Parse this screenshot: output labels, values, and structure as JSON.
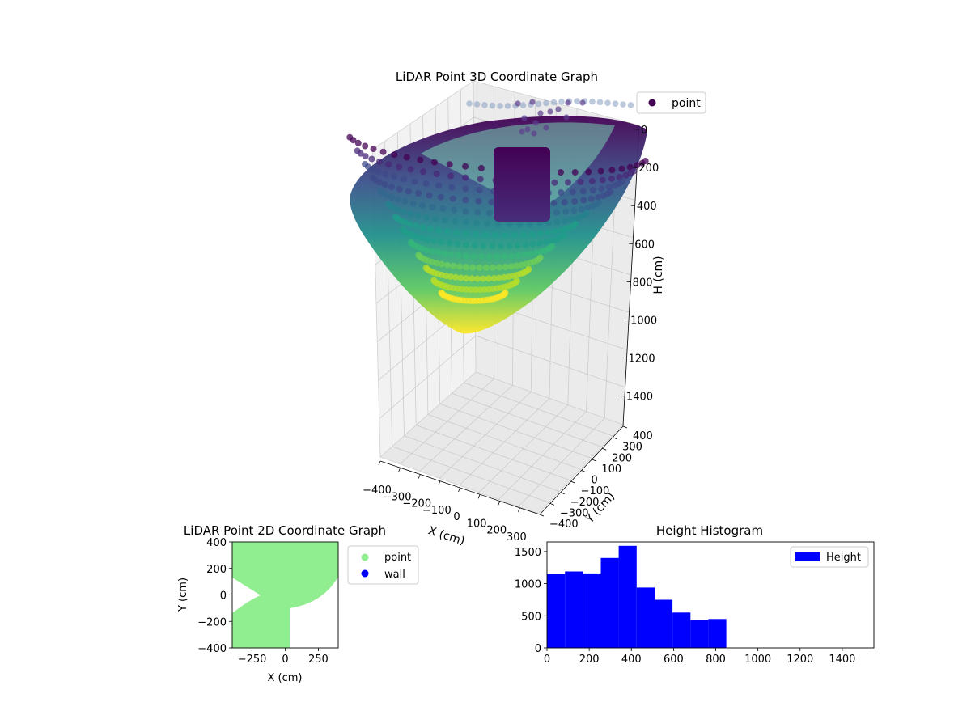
{
  "colors": {
    "viridis_dark": "#440154",
    "viridis_mid": "#21918c",
    "viridis_light": "#fde725",
    "area_point": "#90ee90",
    "wall": "#0000ff",
    "histogram_bar": "#0000ff",
    "pane": "#f2f2f2",
    "grid": "#c8c8c8"
  },
  "chart_data": [
    {
      "id": "lidar_3d",
      "type": "scatter",
      "title": "LiDAR Point 3D Coordinate Graph",
      "xlabel": "X (cm)",
      "ylabel": "Y (cm)",
      "zlabel": "H (cm)",
      "xlim": [
        -400,
        400
      ],
      "ylim": [
        -400,
        400
      ],
      "zlim": [
        1550,
        0
      ],
      "x_ticks": [
        "−400",
        "−300",
        "−200",
        "−100",
        "0",
        "100",
        "200",
        "300"
      ],
      "y_ticks": [
        "−400",
        "−300",
        "−200",
        "−100",
        "0",
        "100",
        "200",
        "300",
        "400"
      ],
      "z_ticks": [
        "0",
        "200",
        "400",
        "600",
        "800",
        "1000",
        "1200",
        "1400"
      ],
      "z_inverted": true,
      "colormap": "viridis",
      "legend": {
        "entries": [
          "point"
        ],
        "placement": "upper-right"
      },
      "grid": true,
      "description_shape": "bowl of concentric scan rings, deepest point near H 1030",
      "series": [
        {
          "name": "point",
          "rings": 13,
          "max_depth_cm": 1030
        }
      ]
    },
    {
      "id": "lidar_2d",
      "type": "scatter",
      "title": "LiDAR Point 2D Coordinate Graph",
      "xlabel": "X (cm)",
      "ylabel": "Y (cm)",
      "xlim": [
        -400,
        400
      ],
      "ylim": [
        -400,
        400
      ],
      "x_ticks": [
        "−250",
        "0",
        "250"
      ],
      "y_ticks": [
        "−400",
        "−200",
        "0",
        "200",
        "400"
      ],
      "legend": {
        "entries": [
          "point",
          "wall"
        ],
        "placement": "outside-right"
      },
      "grid": false,
      "series": [
        {
          "name": "point",
          "color": "#90ee90"
        },
        {
          "name": "wall",
          "color": "#0000ff"
        }
      ]
    },
    {
      "id": "height_hist",
      "type": "bar",
      "title": "Height Histogram",
      "xlabel": "",
      "ylabel": "",
      "xlim": [
        0,
        1550
      ],
      "ylim": [
        0,
        1650
      ],
      "x_ticks": [
        "0",
        "200",
        "400",
        "600",
        "800",
        "1000",
        "1200",
        "1400"
      ],
      "y_ticks": [
        "0",
        "500",
        "1000",
        "1500"
      ],
      "legend": {
        "entries": [
          "Height"
        ],
        "placement": "upper-right"
      },
      "grid": false,
      "bin_edges": [
        0,
        85,
        170,
        255,
        340,
        425,
        510,
        595,
        680,
        765,
        850
      ],
      "series": [
        {
          "name": "Height",
          "values": [
            1150,
            1190,
            1160,
            1400,
            1590,
            940,
            750,
            550,
            430,
            450
          ]
        }
      ]
    }
  ]
}
